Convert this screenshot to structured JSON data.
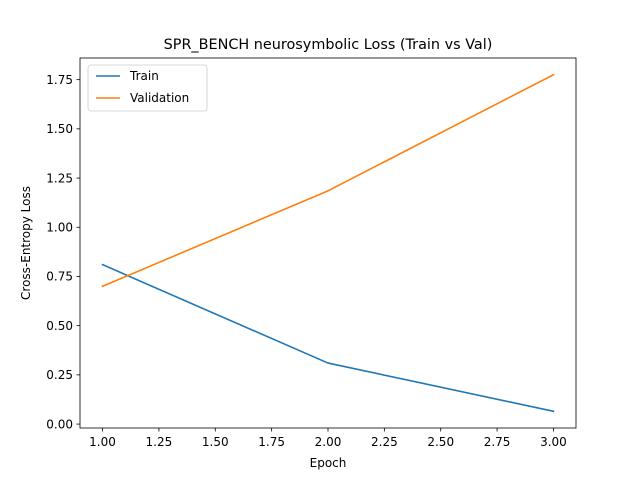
{
  "chart_data": {
    "type": "line",
    "title": "SPR_BENCH neurosymbolic Loss (Train vs Val)",
    "xlabel": "Epoch",
    "ylabel": "Cross-Entropy Loss",
    "x": [
      1,
      2,
      3
    ],
    "series": [
      {
        "name": "Train",
        "values": [
          0.81,
          0.31,
          0.065
        ],
        "color": "#1f77b4"
      },
      {
        "name": "Validation",
        "values": [
          0.7,
          1.185,
          1.775
        ],
        "color": "#ff7f0e"
      }
    ],
    "xlim": [
      0.9,
      3.1
    ],
    "ylim": [
      -0.02,
      1.86
    ],
    "xticks": [
      1.0,
      1.25,
      1.5,
      1.75,
      2.0,
      2.25,
      2.5,
      2.75,
      3.0
    ],
    "xtick_labels": [
      "1.00",
      "1.25",
      "1.50",
      "1.75",
      "2.00",
      "2.25",
      "2.50",
      "2.75",
      "3.00"
    ],
    "yticks": [
      0.0,
      0.25,
      0.5,
      0.75,
      1.0,
      1.25,
      1.5,
      1.75
    ],
    "ytick_labels": [
      "0.00",
      "0.25",
      "0.50",
      "0.75",
      "1.00",
      "1.25",
      "1.50",
      "1.75"
    ],
    "grid": false,
    "legend_position": "top-left"
  }
}
